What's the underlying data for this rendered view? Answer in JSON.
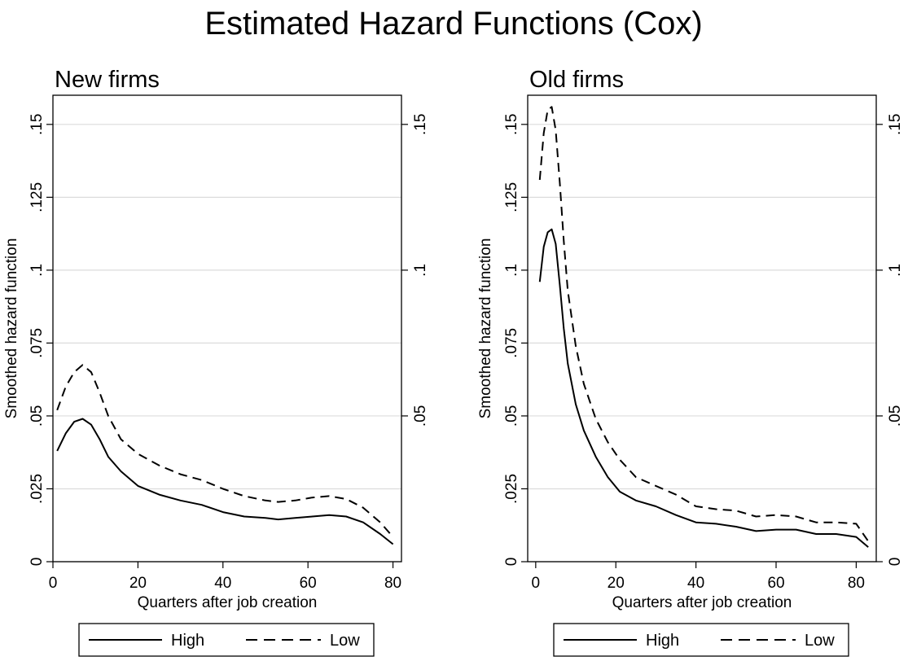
{
  "figure_title": "Estimated Hazard Functions (Cox)",
  "chart_data": [
    {
      "type": "line",
      "title": "New firms",
      "xlabel": "Quarters after job creation",
      "ylabel": "Smoothed hazard function",
      "xlim": [
        0,
        82
      ],
      "ylim": [
        0,
        0.16
      ],
      "x_ticks": [
        0,
        20,
        40,
        60,
        80
      ],
      "x_tick_labels": [
        "0",
        "20",
        "40",
        "60",
        "80"
      ],
      "y_ticks": [
        0,
        0.025,
        0.05,
        0.075,
        0.1,
        0.125,
        0.15
      ],
      "y_tick_labels": [
        "0",
        ".025",
        ".05",
        ".075",
        ".1",
        ".125",
        ".15"
      ],
      "right_y_ticks": [
        0.05,
        0.1,
        0.15
      ],
      "right_y_tick_labels": [
        ".05",
        ".1",
        ".15"
      ],
      "grid": true,
      "legend_position": "bottom",
      "series": [
        {
          "name": "High",
          "style": "solid",
          "x": [
            1,
            3,
            5,
            7,
            9,
            11,
            13,
            16,
            20,
            25,
            30,
            35,
            40,
            45,
            50,
            53,
            57,
            61,
            65,
            69,
            73,
            77,
            80
          ],
          "y": [
            0.038,
            0.044,
            0.048,
            0.049,
            0.047,
            0.042,
            0.036,
            0.031,
            0.026,
            0.023,
            0.021,
            0.0195,
            0.017,
            0.0155,
            0.015,
            0.0145,
            0.015,
            0.0155,
            0.016,
            0.0155,
            0.0135,
            0.0095,
            0.006
          ]
        },
        {
          "name": "Low",
          "style": "dashed",
          "x": [
            1,
            3,
            5,
            7,
            9,
            11,
            13,
            16,
            20,
            25,
            30,
            35,
            40,
            45,
            50,
            53,
            57,
            61,
            65,
            69,
            73,
            77,
            80
          ],
          "y": [
            0.052,
            0.06,
            0.065,
            0.0675,
            0.065,
            0.058,
            0.05,
            0.042,
            0.037,
            0.033,
            0.03,
            0.028,
            0.025,
            0.0225,
            0.021,
            0.0205,
            0.021,
            0.022,
            0.0225,
            0.0215,
            0.0185,
            0.0135,
            0.0085
          ]
        }
      ]
    },
    {
      "type": "line",
      "title": "Old firms",
      "xlabel": "Quarters after job creation",
      "ylabel": "Smoothed hazard function",
      "xlim": [
        -2,
        85
      ],
      "ylim": [
        0,
        0.16
      ],
      "x_ticks": [
        0,
        20,
        40,
        60,
        80
      ],
      "x_tick_labels": [
        "0",
        "20",
        "40",
        "60",
        "80"
      ],
      "y_ticks": [
        0,
        0.025,
        0.05,
        0.075,
        0.1,
        0.125,
        0.15
      ],
      "y_tick_labels": [
        "0",
        ".025",
        ".05",
        ".075",
        ".1",
        ".125",
        ".15"
      ],
      "right_y_ticks": [
        0,
        0.05,
        0.1,
        0.15
      ],
      "right_y_tick_labels": [
        "0",
        ".05",
        ".1",
        ".15"
      ],
      "grid": true,
      "legend_position": "bottom",
      "series": [
        {
          "name": "High",
          "style": "solid",
          "x": [
            1,
            2,
            3,
            4,
            5,
            6,
            7,
            8,
            10,
            12,
            15,
            18,
            21,
            25,
            30,
            35,
            40,
            45,
            50,
            55,
            60,
            65,
            70,
            75,
            80,
            83
          ],
          "y": [
            0.096,
            0.108,
            0.113,
            0.114,
            0.109,
            0.095,
            0.08,
            0.068,
            0.054,
            0.045,
            0.036,
            0.029,
            0.024,
            0.021,
            0.019,
            0.016,
            0.0135,
            0.013,
            0.012,
            0.0105,
            0.011,
            0.011,
            0.0095,
            0.0095,
            0.0085,
            0.005
          ]
        },
        {
          "name": "Low",
          "style": "dashed",
          "x": [
            1,
            2,
            3,
            4,
            5,
            6,
            7,
            8,
            10,
            12,
            15,
            18,
            21,
            25,
            30,
            35,
            40,
            45,
            50,
            55,
            60,
            65,
            70,
            75,
            80,
            83
          ],
          "y": [
            0.131,
            0.147,
            0.155,
            0.156,
            0.148,
            0.13,
            0.11,
            0.093,
            0.074,
            0.061,
            0.049,
            0.041,
            0.035,
            0.029,
            0.026,
            0.023,
            0.019,
            0.018,
            0.0175,
            0.0155,
            0.016,
            0.0155,
            0.0135,
            0.0135,
            0.013,
            0.007
          ]
        }
      ]
    }
  ]
}
